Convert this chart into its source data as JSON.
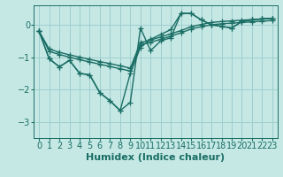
{
  "xlabel": "Humidex (Indice chaleur)",
  "bg_color": "#c5e8e5",
  "line_color": "#1a6e65",
  "grid_color": "#9ecece",
  "x_values": [
    0,
    1,
    2,
    3,
    4,
    5,
    6,
    7,
    8,
    9,
    10,
    11,
    12,
    13,
    14,
    15,
    16,
    17,
    18,
    19,
    20,
    21,
    22,
    23
  ],
  "line_wiggly1": [
    -0.2,
    -1.05,
    -1.3,
    -1.1,
    -1.5,
    -1.55,
    -2.1,
    -2.35,
    -2.65,
    -2.4,
    -0.1,
    -0.8,
    -0.5,
    -0.4,
    0.35,
    0.35,
    0.15,
    0.0,
    -0.05,
    -0.1,
    0.1,
    0.15,
    0.18,
    0.2
  ],
  "line_wiggly2": [
    -0.2,
    -1.05,
    -1.3,
    -1.1,
    -1.5,
    -1.55,
    -2.1,
    -2.35,
    -2.65,
    -1.5,
    -0.7,
    -0.45,
    -0.3,
    -0.15,
    0.35,
    0.35,
    0.15,
    0.0,
    -0.05,
    -0.1,
    0.1,
    0.15,
    0.18,
    0.2
  ],
  "line_straight1": [
    -0.2,
    -0.75,
    -0.85,
    -0.93,
    -1.0,
    -1.07,
    -1.14,
    -1.2,
    -1.27,
    -1.34,
    -0.55,
    -0.47,
    -0.38,
    -0.28,
    -0.18,
    -0.06,
    0.01,
    0.07,
    0.1,
    0.12,
    0.14,
    0.16,
    0.18,
    0.2
  ],
  "line_straight2": [
    -0.2,
    -0.82,
    -0.92,
    -1.0,
    -1.08,
    -1.15,
    -1.22,
    -1.29,
    -1.36,
    -1.43,
    -0.62,
    -0.54,
    -0.45,
    -0.35,
    -0.25,
    -0.13,
    -0.06,
    0.0,
    0.03,
    0.05,
    0.07,
    0.09,
    0.11,
    0.13
  ],
  "ylim": [
    -3.5,
    0.6
  ],
  "xlim": [
    -0.5,
    23.5
  ],
  "yticks": [
    0,
    -1,
    -2,
    -3
  ],
  "xticks": [
    0,
    1,
    2,
    3,
    4,
    5,
    6,
    7,
    8,
    9,
    10,
    11,
    12,
    13,
    14,
    15,
    16,
    17,
    18,
    19,
    20,
    21,
    22,
    23
  ],
  "marker": "+",
  "markersize": 4,
  "linewidth": 1.0,
  "xlabel_fontsize": 8,
  "tick_fontsize": 7
}
